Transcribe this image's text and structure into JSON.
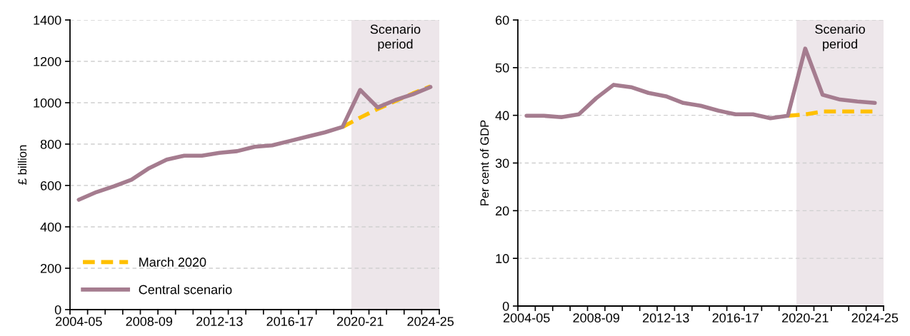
{
  "chart_data": [
    {
      "type": "line",
      "ylabel": "£ billion",
      "categories": [
        "2004-05",
        null,
        null,
        null,
        "2008-09",
        null,
        null,
        null,
        "2012-13",
        null,
        null,
        null,
        "2016-17",
        null,
        null,
        null,
        "2020-21",
        null,
        null,
        null,
        "2024-25"
      ],
      "series": [
        {
          "name": "March 2020",
          "color": "#ffc000",
          "line_style": "dashed",
          "values": [
            null,
            null,
            null,
            null,
            null,
            null,
            null,
            null,
            null,
            null,
            null,
            null,
            null,
            null,
            null,
            883,
            928,
            970,
            1008,
            1045,
            1079
          ]
        },
        {
          "name": "Central scenario",
          "color": "#a57c8f",
          "line_style": "solid",
          "values": [
            531,
            568,
            596,
            628,
            684,
            725,
            744,
            744,
            758,
            766,
            787,
            794,
            815,
            836,
            857,
            883,
            1062,
            977,
            1013,
            1041,
            1076
          ]
        }
      ],
      "ylim": [
        0,
        1400
      ],
      "yticks": [
        0,
        200,
        400,
        600,
        800,
        1000,
        1200,
        1400
      ],
      "grid": "y",
      "legend": "bottom left",
      "bands": [
        {
          "axis": "x",
          "from": "2020-21",
          "to": "2024-25",
          "label": "Scenario\nperiod",
          "color": "#ede6ea"
        }
      ]
    },
    {
      "type": "line",
      "ylabel": "Per cent of GDP",
      "categories": [
        "2004-05",
        null,
        null,
        null,
        "2008-09",
        null,
        null,
        null,
        "2012-13",
        null,
        null,
        null,
        "2016-17",
        null,
        null,
        null,
        "2020-21",
        null,
        null,
        null,
        "2024-25"
      ],
      "series": [
        {
          "color": "#ffc000",
          "line_style": "dashed",
          "values": [
            null,
            null,
            null,
            null,
            null,
            null,
            null,
            null,
            null,
            null,
            null,
            null,
            null,
            null,
            null,
            39.9,
            40.2,
            40.8,
            40.8,
            40.8,
            40.8
          ]
        },
        {
          "color": "#a57c8f",
          "line_style": "solid",
          "values": [
            39.9,
            39.9,
            39.6,
            40.2,
            43.6,
            46.4,
            45.9,
            44.7,
            44.0,
            42.6,
            42.0,
            41.0,
            40.2,
            40.2,
            39.4,
            39.9,
            54.0,
            44.3,
            43.3,
            42.9,
            42.6
          ]
        }
      ],
      "ylim": [
        0,
        60
      ],
      "yticks": [
        0,
        10,
        20,
        30,
        40,
        50,
        60
      ],
      "grid": "y",
      "bands": [
        {
          "axis": "x",
          "from": "2020-21",
          "to": "2024-25",
          "label": "Scenario\nperiod",
          "color": "#ede6ea"
        }
      ]
    }
  ]
}
